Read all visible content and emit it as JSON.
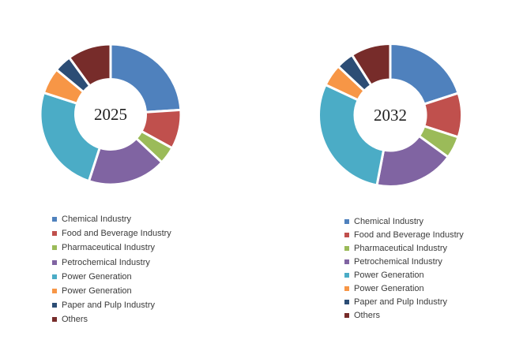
{
  "page": {
    "background": "#ffffff"
  },
  "chart_data": [
    {
      "type": "pie",
      "subtype": "donut",
      "center_label": "2025",
      "unit": "percent",
      "start_angle": "top",
      "direction": "clockwise",
      "legend_position": "below-chart-left",
      "categories": [
        "Chemical Industry",
        "Food and Beverage Industry",
        "Pharmaceutical Industry",
        "Petrochemical Industry",
        "Power Generation",
        "Power Generation",
        "Paper and Pulp Industry",
        "Others"
      ],
      "values": [
        24,
        9,
        4,
        18,
        25,
        6,
        4,
        10
      ],
      "colors": [
        "#4F81BD",
        "#C0504D",
        "#9BBB59",
        "#8064A2",
        "#4BACC6",
        "#F79646",
        "#2C4D75",
        "#772C2A"
      ]
    },
    {
      "type": "pie",
      "subtype": "donut",
      "center_label": "2032",
      "unit": "percent",
      "start_angle": "top",
      "direction": "clockwise",
      "legend_position": "below-chart-left",
      "categories": [
        "Chemical Industry",
        "Food and Beverage Industry",
        "Pharmaceutical Industry",
        "Petrochemical Industry",
        "Power Generation",
        "Power Generation",
        "Paper and Pulp Industry",
        "Others"
      ],
      "values": [
        20,
        10,
        5,
        18,
        29,
        5,
        4,
        9
      ],
      "colors": [
        "#4F81BD",
        "#C0504D",
        "#9BBB59",
        "#8064A2",
        "#4BACC6",
        "#F79646",
        "#2C4D75",
        "#772C2A"
      ]
    }
  ]
}
